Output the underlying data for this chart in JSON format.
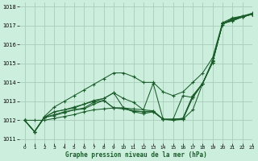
{
  "title": "Graphe pression niveau de la mer (hPa)",
  "background_color": "#cceedd",
  "grid_color": "#aaccbb",
  "line_color": "#1a5c2a",
  "xlim": [
    -0.5,
    23
  ],
  "ylim": [
    1010.8,
    1018.2
  ],
  "xticks": [
    0,
    1,
    2,
    3,
    4,
    5,
    6,
    7,
    8,
    9,
    10,
    11,
    12,
    13,
    14,
    15,
    16,
    17,
    18,
    19,
    20,
    21,
    22,
    23
  ],
  "yticks": [
    1011,
    1012,
    1013,
    1014,
    1015,
    1016,
    1017,
    1018
  ],
  "series": [
    [
      1012.0,
      1012.0,
      1012.0,
      1012.1,
      1012.2,
      1012.3,
      1012.45,
      1012.55,
      1012.6,
      1012.65,
      1012.65,
      1012.6,
      1012.55,
      1012.5,
      1012.05,
      1012.0,
      1012.05,
      1013.2,
      1013.95,
      1015.15,
      1017.05,
      1017.35,
      1017.5,
      1017.6
    ],
    [
      1012.0,
      1011.4,
      1012.15,
      1012.25,
      1012.4,
      1012.55,
      1012.6,
      1012.85,
      1013.05,
      1012.65,
      1012.6,
      1012.5,
      1012.45,
      1012.45,
      1012.05,
      1012.05,
      1012.05,
      1012.55,
      1013.95,
      1015.05,
      1017.1,
      1017.25,
      1017.45,
      1017.6
    ],
    [
      1012.0,
      1011.4,
      1012.15,
      1012.3,
      1012.45,
      1012.55,
      1012.65,
      1012.95,
      1013.05,
      1012.65,
      1012.65,
      1012.45,
      1012.35,
      1012.45,
      1012.05,
      1012.05,
      1013.3,
      1013.2,
      1013.95,
      1015.05,
      1017.1,
      1017.25,
      1017.45,
      1017.6
    ],
    [
      1012.0,
      1011.4,
      1012.15,
      1012.45,
      1012.55,
      1012.65,
      1012.85,
      1013.0,
      1013.15,
      1013.45,
      1012.65,
      1012.5,
      1012.45,
      1012.5,
      1012.05,
      1012.05,
      1012.1,
      1013.3,
      1013.95,
      1015.1,
      1017.1,
      1017.3,
      1017.45,
      1017.6
    ],
    [
      1012.0,
      1011.4,
      1012.15,
      1012.45,
      1012.55,
      1012.7,
      1012.85,
      1013.05,
      1013.15,
      1013.45,
      1013.15,
      1012.95,
      1012.55,
      1013.95,
      1012.05,
      1012.05,
      1012.1,
      1013.3,
      1013.95,
      1015.1,
      1017.1,
      1017.35,
      1017.45,
      1017.6
    ],
    [
      1012.0,
      1011.4,
      1012.2,
      1012.7,
      1013.0,
      1013.3,
      1013.6,
      1013.9,
      1014.2,
      1014.5,
      1014.5,
      1014.3,
      1014.0,
      1014.0,
      1013.5,
      1013.3,
      1013.5,
      1014.0,
      1014.5,
      1015.3,
      1017.15,
      1017.4,
      1017.5,
      1017.65
    ]
  ]
}
